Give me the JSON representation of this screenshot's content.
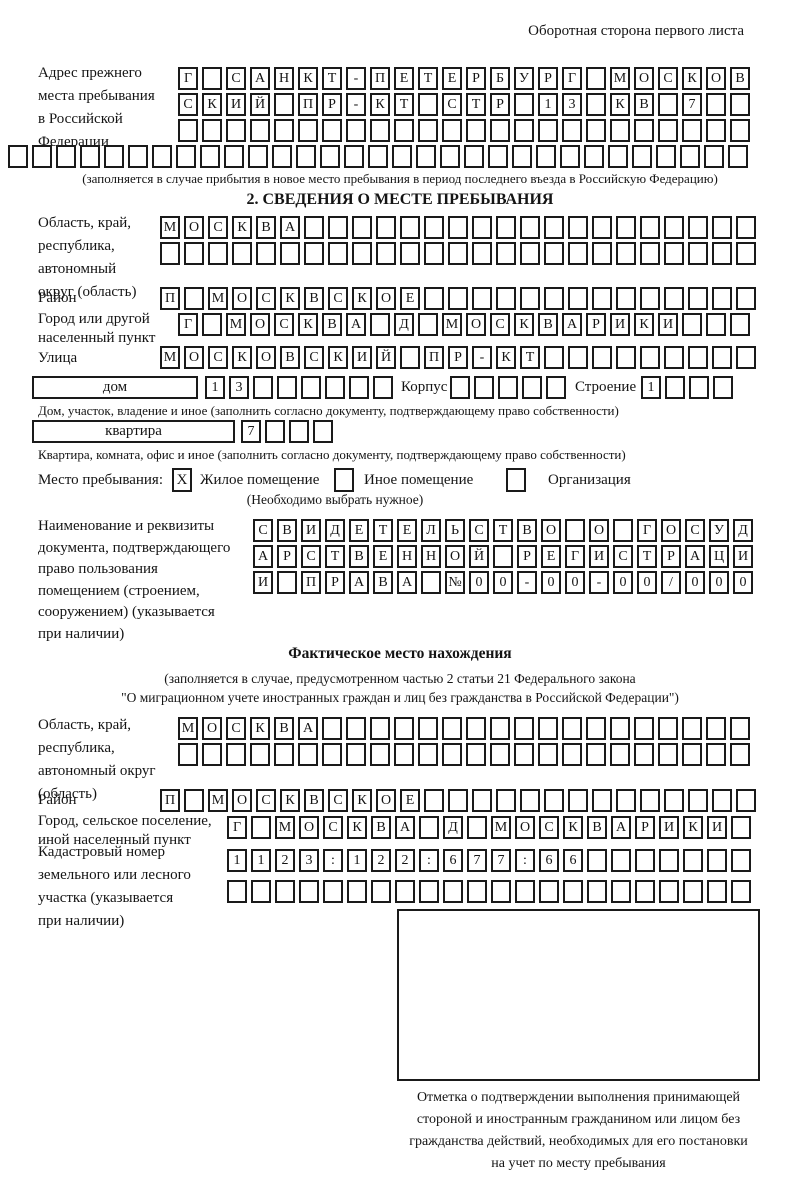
{
  "page": {
    "title": "Оборотная сторона первого листа"
  },
  "colors": {
    "ink": "#1a1a1a",
    "paper": "#ffffff"
  },
  "prev_address": {
    "label": [
      "Адрес прежнего",
      "места пребывания",
      "в Российской",
      "Федерации"
    ],
    "rows": [
      "Г САНКТ-ПЕТЕРБУРГ МОСКОВ",
      "СКИЙ ПР-КТ СТР 13 КВ 7  ",
      "                        "
    ],
    "overflow_row": "                               ",
    "note": "(заполняется в случае прибытия в новое место пребывания в период последнего въезда в Российскую Федерацию)"
  },
  "section2": {
    "header": "2. СВЕДЕНИЯ О МЕСТЕ ПРЕБЫВАНИЯ",
    "region": {
      "label": [
        "Область, край,",
        "республика,",
        "автономный",
        "округ (область)"
      ],
      "rows": [
        "МОСКВА                   ",
        "                         "
      ]
    },
    "district": {
      "label": "Район",
      "row": "П МОСКВСКОЕ              "
    },
    "city": {
      "label": [
        "Город или другой",
        "населенный пункт"
      ],
      "row": "Г МОСКВА Д МОСКВАРИКИ   "
    },
    "street": {
      "label": "Улица",
      "row": "МОСКОВСКИЙ ПР-КТ         "
    },
    "house": {
      "cell_label": "дом",
      "digits": "13      ",
      "korpus_label": "Корпус",
      "korpus_digits": "     ",
      "stroenie_label": "Строение",
      "stroenie_digits": "1   ",
      "note": "Дом, участок, владение и иное (заполнить согласно документу, подтверждающему право собственности)"
    },
    "apartment": {
      "cell_label": "квартира",
      "digits": "7   ",
      "note": "Квартира, комната, офис и иное (заполнить согласно документу, подтверждающему право собственности)"
    },
    "stay_type": {
      "label": "Место пребывания:",
      "options": [
        {
          "label": "Жилое помещение",
          "mark": "X"
        },
        {
          "label": "Иное помещение",
          "mark": ""
        },
        {
          "label": "Организация",
          "mark": ""
        }
      ],
      "note": "(Необходимо выбрать нужное)"
    },
    "doc": {
      "label": [
        "Наименование и реквизиты",
        "документа, подтверждающего",
        "право пользования",
        "помещением (строением,",
        "сооружением) (указывается",
        "при наличии)"
      ],
      "rows": [
        "СВИДЕТЕЛЬСТВО О ГОСУД",
        "АРСТВЕННОЙ РЕГИСТРАЦИ",
        "И ПРАВА №00-00-00/000"
      ]
    }
  },
  "actual_location": {
    "header": "Фактическое место нахождения",
    "note1": "(заполняется в случае, предусмотренном частью 2 статьи 21 Федерального закона",
    "note2": "\"О миграционном учете иностранных граждан и лиц без гражданства в Российской Федерации\")",
    "region": {
      "label": [
        "Область, край,",
        "республика,",
        "автономный округ",
        "(область)"
      ],
      "rows": [
        "МОСКВА                  ",
        "                        "
      ]
    },
    "district": {
      "label": "Район",
      "row": "П МОСКВСКОЕ              "
    },
    "city": {
      "label": [
        "Город, сельское поселение,",
        "иной населенный пункт"
      ],
      "row": "Г МОСКВА Д МОСКВАРИКИ "
    },
    "cadastral": {
      "label": [
        "Кадастровый номер",
        "земельного или лесного",
        "участка (указывается",
        "при наличии)"
      ],
      "rows": [
        "1123:122:677:66       ",
        "                      "
      ]
    },
    "stamp_note": [
      "Отметка о подтверждении выполнения принимающей",
      "стороной и иностранным гражданином или лицом без",
      "гражданства действий, необходимых для его постановки",
      "на учет по месту пребывания"
    ]
  }
}
